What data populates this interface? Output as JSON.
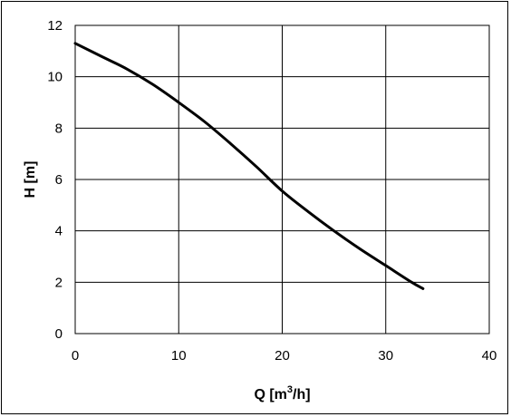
{
  "chart_data": {
    "type": "line",
    "xlabel": "Q [m",
    "xlabel_sup": "3",
    "xlabel_tail": "/h]",
    "ylabel": "H [m]",
    "xlim": [
      0,
      40
    ],
    "ylim": [
      0,
      12
    ],
    "xticks": [
      "0",
      "10",
      "20",
      "30",
      "40"
    ],
    "yticks": [
      "0",
      "2",
      "4",
      "6",
      "8",
      "10",
      "12"
    ],
    "grid": true,
    "series": [
      {
        "x": [
          0,
          2.5,
          5,
          7.5,
          10,
          12.5,
          15,
          17.5,
          20,
          22.5,
          25,
          27.5,
          30,
          32.5,
          33.6
        ],
        "y": [
          11.3,
          10.8,
          10.3,
          9.7,
          9.0,
          8.25,
          7.4,
          6.5,
          5.55,
          4.75,
          4.0,
          3.3,
          2.65,
          2.0,
          1.75
        ],
        "color": "#000000"
      }
    ]
  }
}
